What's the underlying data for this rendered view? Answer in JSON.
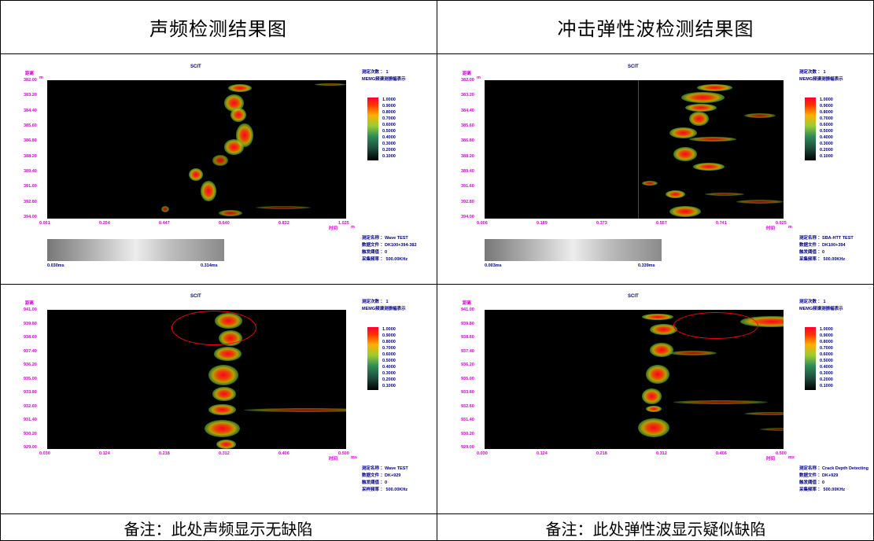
{
  "headers": {
    "left": "声频检测结果图",
    "right": "冲击弹性波检测结果图"
  },
  "footers": {
    "left": "备注：此处声频显示无缺陷",
    "right": "备注：此处弹性波显示疑似缺陷"
  },
  "panels": [
    {
      "title": "SCIT",
      "y_axis_name": "距离",
      "y_unit": "m",
      "x_axis_name": "时间",
      "x_unit": "m",
      "y_ticks": [
        "382.00",
        "383.20",
        "384.40",
        "385.60",
        "386.80",
        "388.20",
        "389.40",
        "391.60",
        "392.80",
        "394.00"
      ],
      "x_ticks": [
        "0.061",
        "0.254",
        "0.447",
        "0.640",
        "0.832",
        "1.025"
      ],
      "info_top": [
        "测定次数 ： 1",
        "MEMG频谱测振幅表示"
      ],
      "legend": [
        "1.0000",
        "0.9000",
        "0.8000",
        "0.7000",
        "0.6000",
        "0.5000",
        "0.4000",
        "0.3000",
        "0.2000",
        "0.1000"
      ],
      "bar_left": "0.030ms",
      "bar_right": "0.314ms",
      "info_bottom": [
        "测定名称 ：Wave TEST",
        "数据文件 ：DK100+394-382",
        "触发阈值 ：0",
        "采集频率 ：  500.00KHz"
      ]
    },
    {
      "title": "SCIT",
      "y_axis_name": "距离",
      "y_unit": "m",
      "x_axis_name": "时间",
      "x_unit": "m",
      "y_ticks": [
        "382.00",
        "383.20",
        "384.40",
        "385.60",
        "386.80",
        "388.20",
        "389.40",
        "391.60",
        "392.80",
        "394.00"
      ],
      "x_ticks": [
        "0.006",
        "0.189",
        "0.373",
        "0.557",
        "0.741",
        "0.925"
      ],
      "info_top": [
        "测定次数 ： 1",
        "MEMG频谱测振幅表示"
      ],
      "legend": [
        "1.0000",
        "0.9000",
        "0.8000",
        "0.7000",
        "0.6000",
        "0.5000",
        "0.4000",
        "0.3000",
        "0.2000",
        "0.1000"
      ],
      "bar_left": "0.003ms",
      "bar_right": "0.339ms",
      "info_bottom": [
        "测定名称 ：SBA-HTT TEST",
        "数据文件 ：DK100+394",
        "触发阈值 ：0",
        "采集频率 ：  500.00KHz"
      ]
    },
    {
      "title": "SCIT",
      "y_axis_name": "距离",
      "y_unit": "",
      "x_axis_name": "时间",
      "x_unit": "ms",
      "y_ticks": [
        "941.00",
        "939.80",
        "938.60",
        "937.40",
        "936.20",
        "935.00",
        "933.80",
        "932.60",
        "931.40",
        "930.20",
        "929.00"
      ],
      "x_ticks": [
        "0.030",
        "0.124",
        "0.218",
        "0.312",
        "0.406",
        "0.500"
      ],
      "info_top": [
        "测定次数 ： 1",
        "MEMG频谱测振幅表示"
      ],
      "legend": [
        "1.0000",
        "0.9000",
        "0.8000",
        "0.7000",
        "0.6000",
        "0.5000",
        "0.4000",
        "0.3000",
        "0.2000",
        "0.1000"
      ],
      "info_bottom": [
        "测定名称 ：Wave TEST",
        "数据文件 ：DK+929",
        "触发阈值 ：0",
        "采样频率 ：  500.00KHz"
      ]
    },
    {
      "title": "SCIT",
      "y_axis_name": "距离",
      "y_unit": "",
      "x_axis_name": "时间",
      "x_unit": "ms",
      "y_ticks": [
        "941.00",
        "939.80",
        "938.60",
        "937.40",
        "936.20",
        "935.00",
        "933.80",
        "932.60",
        "931.40",
        "930.20",
        "929.00"
      ],
      "x_ticks": [
        "0.030",
        "0.124",
        "0.218",
        "0.312",
        "0.406",
        "0.500"
      ],
      "info_top": [
        "测定次数 ： 1",
        "MEMG频谱测振幅表示"
      ],
      "legend": [
        "1.0000",
        "0.9000",
        "0.8000",
        "0.7000",
        "0.6000",
        "0.5000",
        "0.4000",
        "0.3000",
        "0.2000",
        "0.1000"
      ],
      "info_bottom": [
        "测定名称 ：Crack Depth Detecting",
        "数据文件 ：DK+929",
        "触发阈值 ：0",
        "采集频率 ：  500.00KHz"
      ]
    }
  ],
  "colors": {
    "axis_text": "#d900d9",
    "info_text": "#00008b",
    "annotation": "#ff0000"
  }
}
